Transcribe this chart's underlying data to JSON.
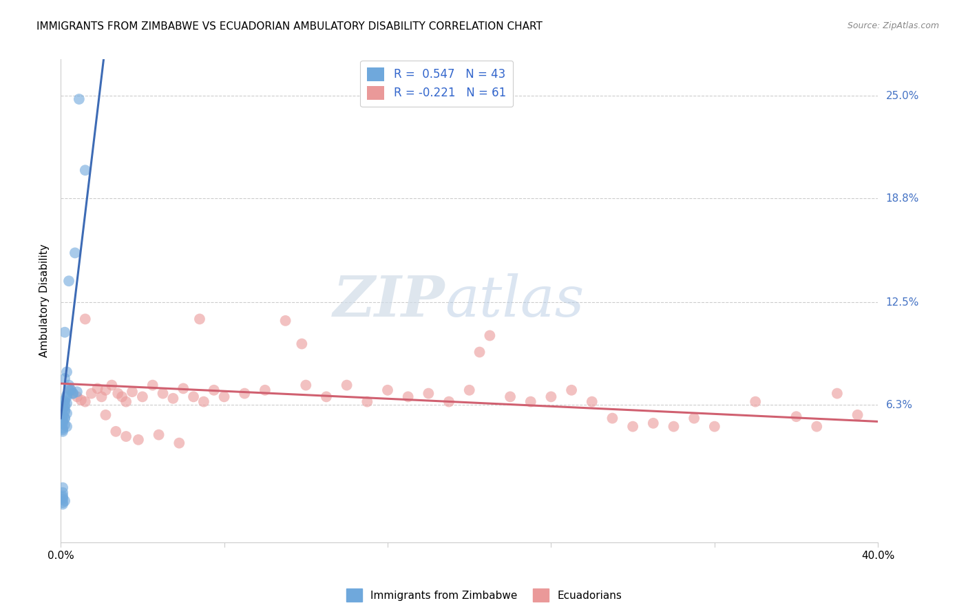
{
  "title": "IMMIGRANTS FROM ZIMBABWE VS ECUADORIAN AMBULATORY DISABILITY CORRELATION CHART",
  "source": "Source: ZipAtlas.com",
  "ylabel": "Ambulatory Disability",
  "yticks": [
    "25.0%",
    "18.8%",
    "12.5%",
    "6.3%"
  ],
  "ytick_vals": [
    0.25,
    0.188,
    0.125,
    0.063
  ],
  "xmin": 0.0,
  "xmax": 0.4,
  "ymin": -0.02,
  "ymax": 0.272,
  "color_blue": "#6fa8dc",
  "color_pink": "#ea9999",
  "color_blue_line": "#3d6bb5",
  "color_pink_line": "#d06070",
  "watermark_zip": "ZIP",
  "watermark_atlas": "atlas",
  "blue_line_x0": 0.0,
  "blue_line_y0": 0.055,
  "blue_line_x1": 0.021,
  "blue_line_y1": 0.272,
  "pink_line_x0": 0.0,
  "pink_line_y0": 0.076,
  "pink_line_x1": 0.4,
  "pink_line_y1": 0.053,
  "blue_scatter_x": [
    0.009,
    0.012,
    0.007,
    0.004,
    0.002,
    0.003,
    0.002,
    0.004,
    0.005,
    0.008,
    0.006,
    0.003,
    0.003,
    0.002,
    0.002,
    0.003,
    0.002,
    0.002,
    0.001,
    0.002,
    0.002,
    0.004,
    0.003,
    0.006,
    0.001,
    0.002,
    0.002,
    0.001,
    0.001,
    0.001,
    0.002,
    0.003,
    0.001,
    0.001,
    0.001,
    0.001,
    0.001,
    0.001,
    0.001,
    0.001,
    0.002,
    0.001,
    0.001
  ],
  "blue_scatter_y": [
    0.248,
    0.205,
    0.155,
    0.138,
    0.107,
    0.083,
    0.079,
    0.075,
    0.072,
    0.071,
    0.07,
    0.069,
    0.068,
    0.066,
    0.065,
    0.064,
    0.063,
    0.062,
    0.061,
    0.06,
    0.059,
    0.072,
    0.058,
    0.07,
    0.057,
    0.055,
    0.055,
    0.054,
    0.053,
    0.052,
    0.051,
    0.05,
    0.049,
    0.048,
    0.047,
    0.013,
    0.01,
    0.008,
    0.007,
    0.006,
    0.005,
    0.004,
    0.003
  ],
  "pink_scatter_x": [
    0.005,
    0.008,
    0.01,
    0.012,
    0.015,
    0.018,
    0.02,
    0.022,
    0.025,
    0.028,
    0.03,
    0.032,
    0.035,
    0.04,
    0.045,
    0.05,
    0.055,
    0.06,
    0.065,
    0.07,
    0.075,
    0.08,
    0.09,
    0.1,
    0.11,
    0.12,
    0.13,
    0.14,
    0.15,
    0.16,
    0.17,
    0.18,
    0.19,
    0.2,
    0.21,
    0.22,
    0.23,
    0.24,
    0.25,
    0.26,
    0.27,
    0.28,
    0.29,
    0.3,
    0.31,
    0.32,
    0.34,
    0.36,
    0.37,
    0.38,
    0.39,
    0.012,
    0.022,
    0.027,
    0.032,
    0.038,
    0.048,
    0.058,
    0.068,
    0.118,
    0.205
  ],
  "pink_scatter_y": [
    0.072,
    0.068,
    0.066,
    0.065,
    0.07,
    0.073,
    0.068,
    0.072,
    0.075,
    0.07,
    0.068,
    0.065,
    0.071,
    0.068,
    0.075,
    0.07,
    0.067,
    0.073,
    0.068,
    0.065,
    0.072,
    0.068,
    0.07,
    0.072,
    0.114,
    0.075,
    0.068,
    0.075,
    0.065,
    0.072,
    0.068,
    0.07,
    0.065,
    0.072,
    0.105,
    0.068,
    0.065,
    0.068,
    0.072,
    0.065,
    0.055,
    0.05,
    0.052,
    0.05,
    0.055,
    0.05,
    0.065,
    0.056,
    0.05,
    0.07,
    0.057,
    0.115,
    0.057,
    0.047,
    0.044,
    0.042,
    0.045,
    0.04,
    0.115,
    0.1,
    0.095
  ]
}
